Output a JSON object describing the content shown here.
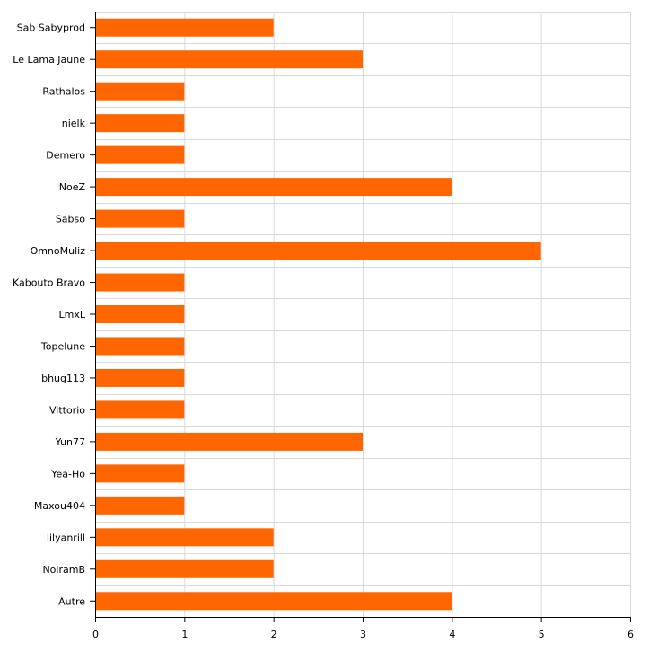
{
  "chart_data": {
    "type": "bar",
    "orientation": "horizontal",
    "title": "",
    "xlabel": "",
    "ylabel": "",
    "categories": [
      "Sab Sabyprod",
      "Le Lama Jaune",
      "Rathalos",
      "nielk",
      "Demero",
      "NoeZ",
      "Sabso",
      "OmnoMuliz",
      "Kabouto Bravo",
      "LmxL",
      "Topelune",
      "bhug113",
      "Vittorio",
      "Yun77",
      "Yea-Ho",
      "Maxou404",
      "lilyanrill",
      "NoiramB",
      "Autre"
    ],
    "values": [
      2,
      3,
      1,
      1,
      1,
      4,
      1,
      5,
      1,
      1,
      1,
      1,
      1,
      3,
      1,
      1,
      2,
      2,
      4
    ],
    "xlim": [
      0,
      6
    ],
    "xticks": [
      "0",
      "1",
      "2",
      "3",
      "4",
      "5",
      "6"
    ],
    "grid": true,
    "bar_color": "#ff6600",
    "grid_color": "#d9d9d9"
  }
}
